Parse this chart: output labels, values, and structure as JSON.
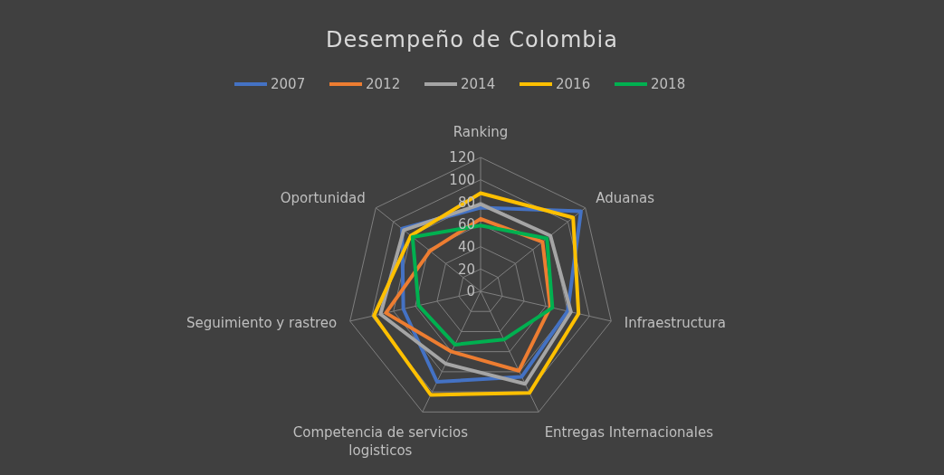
{
  "chart_data": {
    "type": "radar",
    "title": "Desempeño de Colombia",
    "categories": [
      "Ranking",
      "Aduanas",
      "Infraestructura",
      "Entregas Internacionales",
      "Competencia de servicios logisticos",
      "Seguimiento y rastreo",
      "Oportunidad"
    ],
    "series": [
      {
        "name": "2007",
        "color": "#4472c4",
        "values": [
          75,
          115,
          80,
          85,
          90,
          71,
          90
        ]
      },
      {
        "name": "2012",
        "color": "#ed7d31",
        "values": [
          65,
          71,
          64,
          79,
          60,
          87,
          58
        ]
      },
      {
        "name": "2014",
        "color": "#a5a5a5",
        "values": [
          78,
          80,
          83,
          92,
          72,
          92,
          88
        ]
      },
      {
        "name": "2016",
        "color": "#ffc000",
        "values": [
          88,
          106,
          90,
          101,
          103,
          98,
          80
        ]
      },
      {
        "name": "2018",
        "color": "#00b050",
        "values": [
          59,
          76,
          66,
          48,
          53,
          57,
          78
        ]
      }
    ],
    "ylim": [
      0,
      120
    ],
    "yticks": [
      0,
      20,
      40,
      60,
      80,
      100,
      120
    ],
    "legend": "top",
    "grid": true
  }
}
